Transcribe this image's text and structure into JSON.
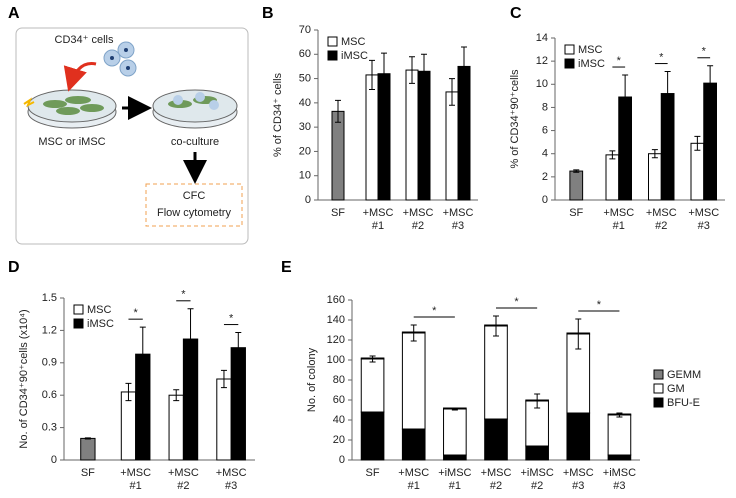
{
  "schematic": {
    "label": "A",
    "texts": [
      "CD34⁺ cells",
      "MSC or iMSC",
      "co-culture",
      "CFC",
      "Flow cytometry"
    ]
  },
  "chart_data": [
    {
      "type": "bar",
      "label": "B",
      "ylabel": "% of CD34⁺ cells",
      "categories": [
        [
          "SF"
        ],
        [
          "+MSC",
          "#1"
        ],
        [
          "+MSC",
          "#2"
        ],
        [
          "+MSC",
          "#3"
        ]
      ],
      "series": [
        {
          "color": "#808080",
          "values": [
            36.5,
            null,
            null,
            null
          ],
          "errors": [
            4.5,
            null,
            null,
            null
          ]
        },
        {
          "name": "MSC",
          "color": "#ffffff",
          "values": [
            null,
            51.5,
            53.5,
            44.5
          ],
          "errors": [
            null,
            6,
            5.5,
            5.5
          ]
        },
        {
          "name": "iMSC",
          "color": "#000000",
          "values": [
            null,
            52,
            53,
            55
          ],
          "errors": [
            null,
            8.5,
            7,
            8
          ]
        }
      ],
      "ylim": [
        0,
        70
      ],
      "yticks": [
        0,
        10,
        20,
        30,
        40,
        50,
        60,
        70
      ],
      "legend": "top-left"
    },
    {
      "type": "bar",
      "label": "C",
      "ylabel": "% of CD34⁺90⁺cells",
      "categories": [
        [
          "SF"
        ],
        [
          "+MSC",
          "#1"
        ],
        [
          "+MSC",
          "#2"
        ],
        [
          "+MSC",
          "#3"
        ]
      ],
      "series": [
        {
          "color": "#808080",
          "values": [
            2.5,
            null,
            null,
            null
          ],
          "errors": [
            0.1,
            null,
            null,
            null
          ]
        },
        {
          "name": "MSC",
          "color": "#ffffff",
          "values": [
            null,
            3.9,
            4.0,
            4.9
          ],
          "errors": [
            null,
            0.35,
            0.35,
            0.6
          ]
        },
        {
          "name": "iMSC",
          "color": "#000000",
          "values": [
            null,
            8.9,
            9.2,
            10.1
          ],
          "errors": [
            null,
            1.9,
            1.9,
            1.5
          ]
        }
      ],
      "significance": [
        {
          "from": 1,
          "to": 1,
          "label": "*"
        },
        {
          "from": 2,
          "to": 2,
          "label": "*"
        },
        {
          "from": 3,
          "to": 3,
          "label": "*"
        }
      ],
      "ylim": [
        0,
        14
      ],
      "yticks": [
        0,
        2,
        4,
        6,
        8,
        10,
        12,
        14
      ],
      "legend": "top-left"
    },
    {
      "type": "bar",
      "label": "D",
      "ylabel": "No. of CD34⁺90⁺cells (x10⁴)",
      "categories": [
        [
          "SF"
        ],
        [
          "+MSC",
          "#1"
        ],
        [
          "+MSC",
          "#2"
        ],
        [
          "+MSC",
          "#3"
        ]
      ],
      "series": [
        {
          "color": "#808080",
          "values": [
            0.2,
            null,
            null,
            null
          ],
          "errors": [
            0.005,
            null,
            null,
            null
          ]
        },
        {
          "name": "MSC",
          "color": "#ffffff",
          "values": [
            null,
            0.63,
            0.6,
            0.75
          ],
          "errors": [
            null,
            0.08,
            0.05,
            0.08
          ]
        },
        {
          "name": "iMSC",
          "color": "#000000",
          "values": [
            null,
            0.98,
            1.12,
            1.04
          ],
          "errors": [
            null,
            0.25,
            0.28,
            0.14
          ]
        }
      ],
      "significance": [
        {
          "from": 1,
          "to": 1,
          "label": "*"
        },
        {
          "from": 2,
          "to": 2,
          "label": "*"
        },
        {
          "from": 3,
          "to": 3,
          "label": "*"
        }
      ],
      "ylim": [
        0,
        1.5
      ],
      "yticks": [
        0,
        0.3,
        0.6,
        0.9,
        1.2,
        1.5
      ],
      "legend": "top-left"
    },
    {
      "type": "stacked_bar",
      "label": "E",
      "ylabel": "No. of colony",
      "categories": [
        [
          "SF"
        ],
        [
          "+MSC",
          "#1"
        ],
        [
          "+iMSC",
          "#1"
        ],
        [
          "+MSC",
          "#2"
        ],
        [
          "+iMSC",
          "#2"
        ],
        [
          "+MSC",
          "#3"
        ],
        [
          "+iMSC",
          "#3"
        ]
      ],
      "series": [
        {
          "name": "BFU-E",
          "color": "#000000",
          "values": [
            48,
            31,
            5,
            41,
            14,
            47,
            5
          ],
          "errors": [
            2,
            6,
            2,
            6,
            7,
            21,
            1.5
          ]
        },
        {
          "name": "GM",
          "color": "#ffffff",
          "values": [
            53,
            96,
            46,
            93,
            45,
            79,
            40
          ],
          "errors": [
            3,
            8,
            1,
            10,
            7,
            15,
            2
          ]
        },
        {
          "name": "GEMM",
          "color": "#808080",
          "values": [
            1,
            1,
            1,
            1,
            1,
            1,
            1
          ]
        }
      ],
      "significance": [
        {
          "from": 1,
          "to": 2,
          "label": "*"
        },
        {
          "from": 3,
          "to": 4,
          "label": "*"
        },
        {
          "from": 5,
          "to": 6,
          "label": "*"
        }
      ],
      "ylim": [
        0,
        160
      ],
      "yticks": [
        0,
        20,
        40,
        60,
        80,
        100,
        120,
        140,
        160
      ],
      "legend": "right"
    }
  ]
}
